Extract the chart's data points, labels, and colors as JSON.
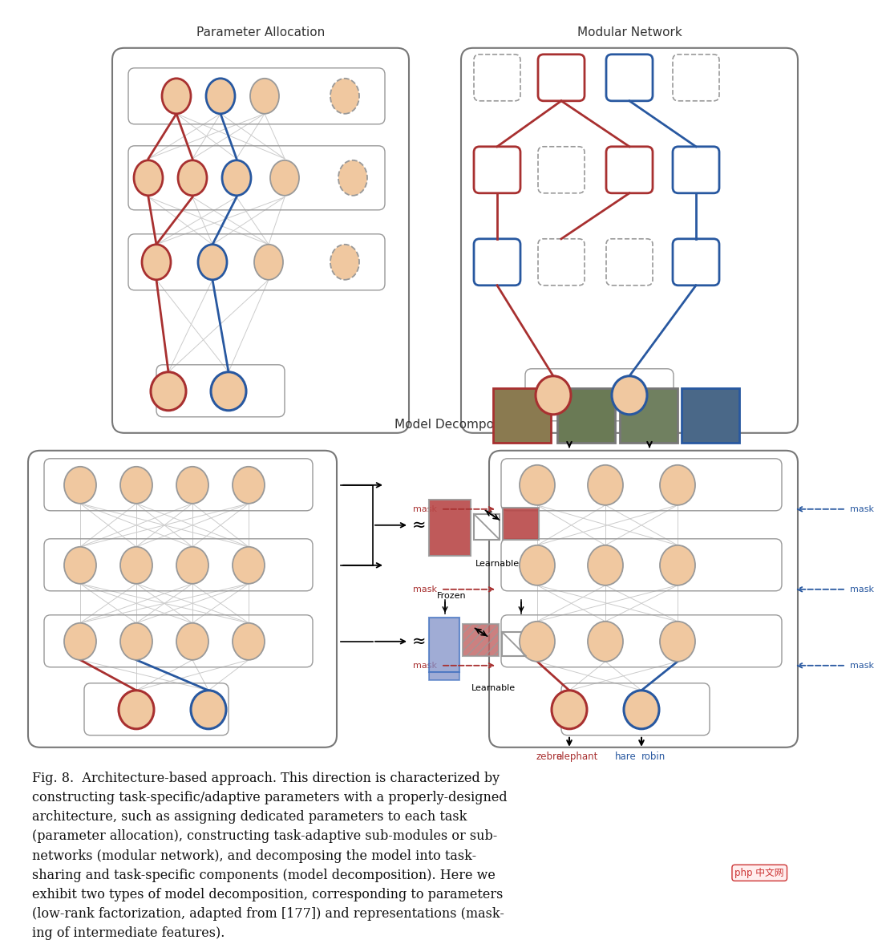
{
  "bg_color": "#ffffff",
  "red_color": "#a83030",
  "blue_color": "#2858a0",
  "node_fill": "#f0c8a0",
  "title_param": "Parameter Allocation",
  "title_modular": "Modular Network",
  "title_decomp": "Model Decomposition",
  "caption": "Fig. 8.  Architecture-based approach. This direction is characterized by constructing task-specific/adaptive parameters with a properly-designed architecture, such as assigning dedicated parameters to each task (parameter allocation), constructing task-adaptive sub-modules or sub-networks (modular network), and decomposing the model into task-sharing and task-specific components (model decomposition). Here we exhibit two types of model decomposition, corresponding to parameters (low-rank factorization, adapted from [177]) and representations (masking of intermediate features)."
}
